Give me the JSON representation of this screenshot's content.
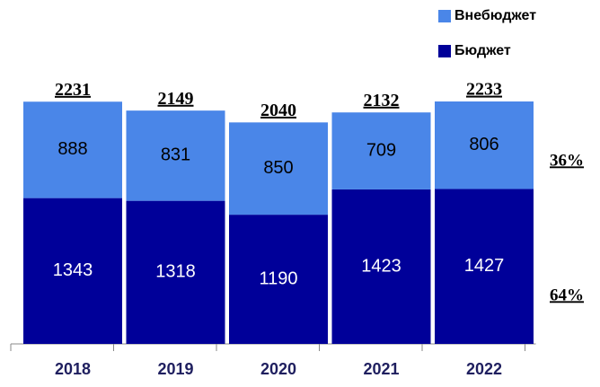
{
  "chart_data": {
    "type": "stacked_bar",
    "categories": [
      "2018",
      "2019",
      "2020",
      "2021",
      "2022"
    ],
    "series": [
      {
        "name": "Бюджет",
        "color": "#000099",
        "values": [
          1343,
          1318,
          1190,
          1423,
          1427
        ]
      },
      {
        "name": "Внебюджет",
        "color": "#4a86e8",
        "values": [
          888,
          831,
          850,
          709,
          806
        ]
      }
    ],
    "totals": [
      2231,
      2149,
      2040,
      2132,
      2233
    ],
    "annotations": [
      "36%",
      "64%"
    ]
  }
}
